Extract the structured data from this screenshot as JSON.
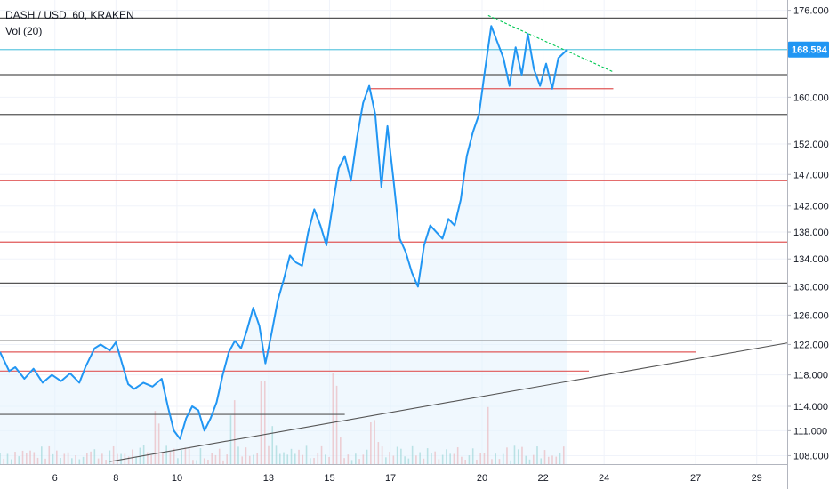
{
  "header": {
    "symbol": "DASH / USD, 60, KRAKEN",
    "indicator": "Vol (20)"
  },
  "chart_data": {
    "type": "line",
    "symbol": "DASH / USD",
    "timeframe": "60",
    "exchange": "KRAKEN",
    "line_color": "#2196f3",
    "fill_color": "#e3f2fd",
    "up_volume_color": "#26a69a",
    "down_volume_color": "#ef5350",
    "y_axis": {
      "scale": "log",
      "ticks": [
        "176.000",
        "168.584",
        "160.000",
        "152.000",
        "147.000",
        "142.000",
        "138.000",
        "134.000",
        "130.000",
        "126.000",
        "122.000",
        "118.000",
        "114.000",
        "111.000",
        "108.000"
      ],
      "tick_values": [
        176,
        160,
        152,
        147,
        142,
        138,
        134,
        130,
        126,
        122,
        118,
        114,
        111,
        108
      ],
      "last_price": 168.584,
      "last_price_label": "168.584",
      "range": [
        107,
        178
      ]
    },
    "x_axis": {
      "tick_labels": [
        "6",
        "8",
        "10",
        "13",
        "15",
        "17",
        "20",
        "22",
        "24",
        "27",
        "29"
      ],
      "tick_days": [
        6,
        8,
        10,
        13,
        15,
        17,
        20,
        22,
        24,
        27,
        29
      ],
      "range_days": [
        4.2,
        30.0
      ]
    },
    "price_series": {
      "name": "DASH / USD",
      "points": [
        [
          4.2,
          121.0
        ],
        [
          4.5,
          118.5
        ],
        [
          4.7,
          119.0
        ],
        [
          5.0,
          117.5
        ],
        [
          5.3,
          118.8
        ],
        [
          5.6,
          117.0
        ],
        [
          5.9,
          118.0
        ],
        [
          6.2,
          117.2
        ],
        [
          6.5,
          118.2
        ],
        [
          6.8,
          117.0
        ],
        [
          7.0,
          119.0
        ],
        [
          7.3,
          121.5
        ],
        [
          7.5,
          122.0
        ],
        [
          7.8,
          121.2
        ],
        [
          8.0,
          122.3
        ],
        [
          8.2,
          119.5
        ],
        [
          8.4,
          116.8
        ],
        [
          8.6,
          116.2
        ],
        [
          8.9,
          117.0
        ],
        [
          9.2,
          116.5
        ],
        [
          9.5,
          117.5
        ],
        [
          9.7,
          114.0
        ],
        [
          9.9,
          111.0
        ],
        [
          10.1,
          110.0
        ],
        [
          10.3,
          112.5
        ],
        [
          10.5,
          114.0
        ],
        [
          10.7,
          113.5
        ],
        [
          10.9,
          111.0
        ],
        [
          11.1,
          112.5
        ],
        [
          11.3,
          114.5
        ],
        [
          11.5,
          118.0
        ],
        [
          11.7,
          121.0
        ],
        [
          11.9,
          122.5
        ],
        [
          12.1,
          121.5
        ],
        [
          12.3,
          124.0
        ],
        [
          12.5,
          127.0
        ],
        [
          12.7,
          124.5
        ],
        [
          12.9,
          119.5
        ],
        [
          13.1,
          123.5
        ],
        [
          13.3,
          128.0
        ],
        [
          13.5,
          131.0
        ],
        [
          13.7,
          134.5
        ],
        [
          13.9,
          133.5
        ],
        [
          14.1,
          133.0
        ],
        [
          14.3,
          138.0
        ],
        [
          14.5,
          141.5
        ],
        [
          14.7,
          139.0
        ],
        [
          14.9,
          136.0
        ],
        [
          15.1,
          142.0
        ],
        [
          15.3,
          148.0
        ],
        [
          15.5,
          150.0
        ],
        [
          15.7,
          146.0
        ],
        [
          15.9,
          153.0
        ],
        [
          16.1,
          159.0
        ],
        [
          16.3,
          162.0
        ],
        [
          16.5,
          157.0
        ],
        [
          16.7,
          145.0
        ],
        [
          16.9,
          155.0
        ],
        [
          17.1,
          146.0
        ],
        [
          17.3,
          137.0
        ],
        [
          17.5,
          135.0
        ],
        [
          17.7,
          132.0
        ],
        [
          17.9,
          130.0
        ],
        [
          18.1,
          136.0
        ],
        [
          18.3,
          139.0
        ],
        [
          18.5,
          138.0
        ],
        [
          18.7,
          137.0
        ],
        [
          18.9,
          140.0
        ],
        [
          19.1,
          139.0
        ],
        [
          19.3,
          143.0
        ],
        [
          19.5,
          150.0
        ],
        [
          19.7,
          154.0
        ],
        [
          19.9,
          157.0
        ],
        [
          20.1,
          165.0
        ],
        [
          20.3,
          173.0
        ],
        [
          20.5,
          170.0
        ],
        [
          20.7,
          167.0
        ],
        [
          20.9,
          162.0
        ],
        [
          21.1,
          169.0
        ],
        [
          21.3,
          164.0
        ],
        [
          21.5,
          171.5
        ],
        [
          21.7,
          165.0
        ],
        [
          21.9,
          162.0
        ],
        [
          22.1,
          166.0
        ],
        [
          22.3,
          161.5
        ],
        [
          22.5,
          167.0
        ],
        [
          22.8,
          168.6
        ]
      ]
    },
    "volume_series": {
      "name": "Vol (20)",
      "start_day": 4.2,
      "end_day": 22.8,
      "bar_count": 150,
      "base_scale": 0.16,
      "peaks": [
        [
          15.2,
          0.9
        ],
        [
          12.8,
          0.8
        ],
        [
          20.2,
          0.55
        ],
        [
          9.4,
          0.5
        ],
        [
          16.4,
          0.45
        ],
        [
          11.8,
          0.6
        ]
      ]
    },
    "horizontal_lines": [
      {
        "price": 174.5,
        "color": "#555555",
        "from_day": 4.2,
        "to_day": 30.0
      },
      {
        "price": 168.584,
        "color": "#62c8e0",
        "from_day": 4.2,
        "to_day": 30.0
      },
      {
        "price": 164.0,
        "color": "#555555",
        "from_day": 4.2,
        "to_day": 30.0
      },
      {
        "price": 161.5,
        "color": "#e05858",
        "from_day": 16.3,
        "to_day": 24.3
      },
      {
        "price": 157.0,
        "color": "#555555",
        "from_day": 4.2,
        "to_day": 30.0
      },
      {
        "price": 146.0,
        "color": "#e05858",
        "from_day": 4.2,
        "to_day": 30.0
      },
      {
        "price": 136.5,
        "color": "#e05858",
        "from_day": 4.2,
        "to_day": 30.0
      },
      {
        "price": 130.5,
        "color": "#555555",
        "from_day": 4.2,
        "to_day": 30.0
      },
      {
        "price": 122.5,
        "color": "#555555",
        "from_day": 4.2,
        "to_day": 29.5
      },
      {
        "price": 121.0,
        "color": "#e05858",
        "from_day": 4.2,
        "to_day": 27.0
      },
      {
        "price": 118.5,
        "color": "#e05858",
        "from_day": 4.2,
        "to_day": 23.5
      },
      {
        "price": 113.0,
        "color": "#555555",
        "from_day": 4.2,
        "to_day": 15.5
      }
    ],
    "trend_lines": [
      {
        "from": [
          20.2,
          175.0
        ],
        "to": [
          24.3,
          164.5
        ],
        "color": "#00c853",
        "dashed": true
      },
      {
        "from": [
          7.8,
          107.3
        ],
        "to": [
          30.0,
          122.2
        ],
        "color": "#555555",
        "dashed": false
      }
    ]
  }
}
